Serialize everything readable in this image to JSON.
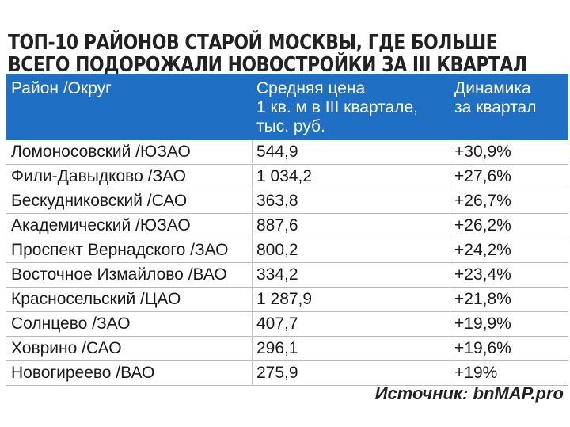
{
  "title": {
    "line1": "ТОП-10 РАЙОНОВ СТАРОЙ МОСКВЫ, ГДЕ БОЛЬШЕ",
    "line2": "ВСЕГО ПОДОРОЖАЛИ НОВОСТРОЙКИ ЗА III КВАРТАЛ"
  },
  "table": {
    "headers": {
      "district": "Район /Округ",
      "price_line1": "Средняя цена",
      "price_line2": "1 кв. м в III квартале,",
      "price_line3": "тыс. руб.",
      "change_line1": "Динамика",
      "change_line2": "за квартал"
    },
    "rows": [
      {
        "district": "Ломоносовский /ЮЗАО",
        "price": "544,9",
        "change": "+30,9%"
      },
      {
        "district": "Фили-Давыдково /ЗАО",
        "price": " 1 034,2",
        "change": "+27,6%"
      },
      {
        "district": "Бескудниковский /САО",
        "price": "363,8",
        "change": "+26,7%"
      },
      {
        "district": "Академический /ЮЗАО",
        "price": "887,6",
        "change": "+26,2%"
      },
      {
        "district": "Проспект Вернадского /ЗАО",
        "price": "800,2",
        "change": "+24,2%"
      },
      {
        "district": "Восточное Измайлово /ВАО",
        "price": "334,2",
        "change": "+23,4%"
      },
      {
        "district": "Красносельский /ЦАО",
        "price": "1 287,9",
        "change": "+21,8%"
      },
      {
        "district": "Солнцево /ЗАО",
        "price": "407,7",
        "change": "+19,9%"
      },
      {
        "district": "Ховрино /САО",
        "price": "296,1",
        "change": "+19,6%"
      },
      {
        "district": "Новогиреево /ВАО",
        "price": "275,9",
        "change": "+19%"
      }
    ]
  },
  "source": "Источник: bnMAP.pro",
  "colors": {
    "header_bg": "#1f6fc5",
    "header_text": "#ffffff",
    "text": "#1a1a1a"
  }
}
